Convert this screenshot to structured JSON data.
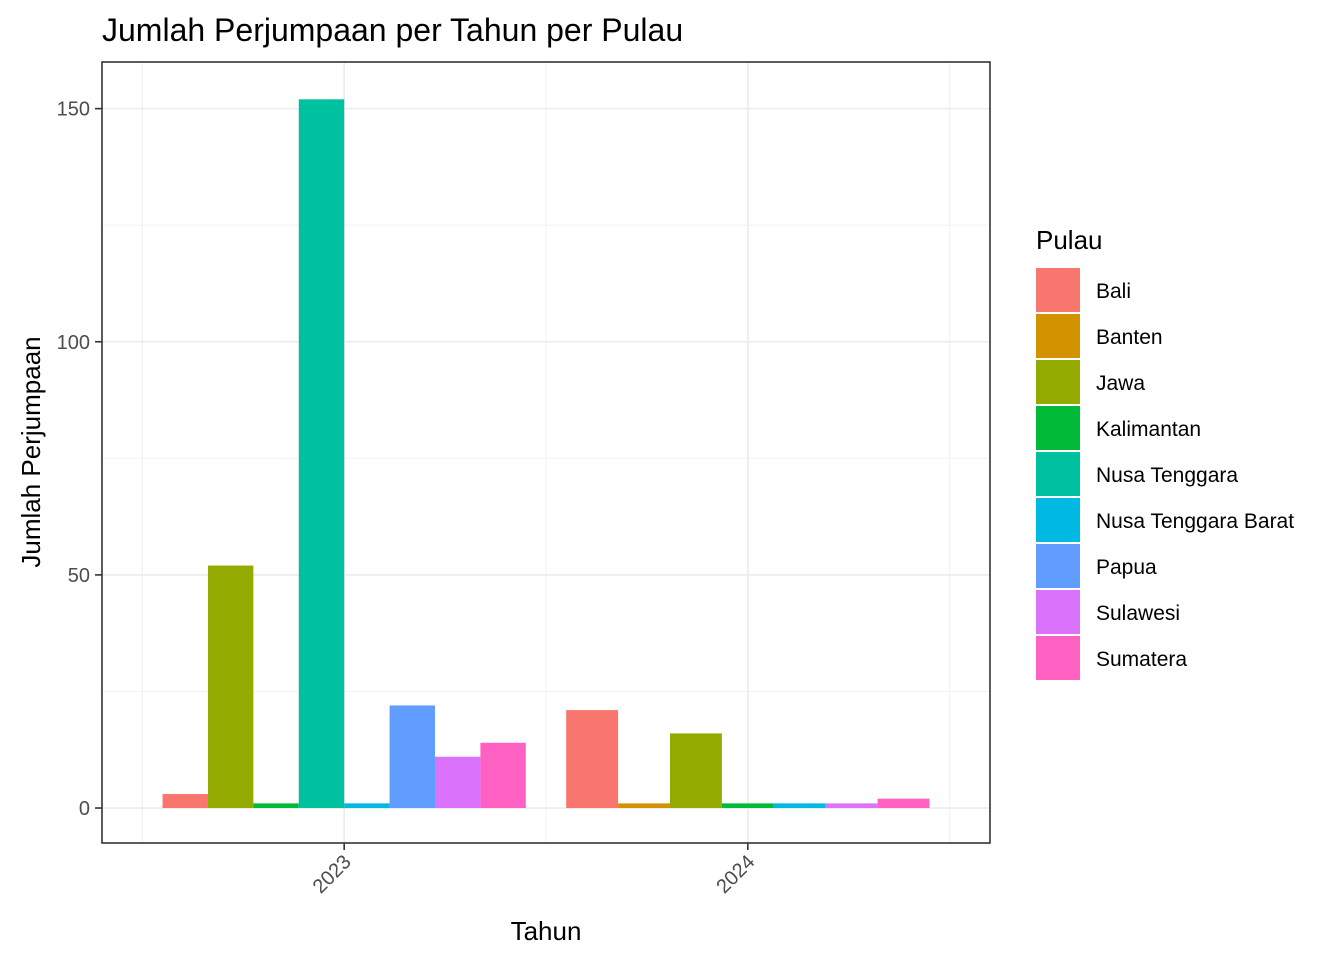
{
  "chart_data": {
    "type": "bar",
    "title": "Jumlah Perjumpaan per Tahun per Pulau",
    "xlabel": "Tahun",
    "ylabel": "Jumlah Perjumpaan",
    "ylim": [
      -7.5,
      160
    ],
    "yticks": [
      "0",
      "50",
      "100",
      "150"
    ],
    "ytick_values": [
      0,
      50,
      100,
      150
    ],
    "grid": true,
    "legend": {
      "title": "Pulau",
      "placement": "right"
    },
    "categories": [
      "2023",
      "2024"
    ],
    "series": [
      {
        "name": "Bali",
        "color": "#F8766D",
        "values": [
          3,
          21
        ]
      },
      {
        "name": "Banten",
        "color": "#D39200",
        "values": [
          null,
          1
        ]
      },
      {
        "name": "Jawa",
        "color": "#93AA00",
        "values": [
          52,
          16
        ]
      },
      {
        "name": "Kalimantan",
        "color": "#00BA38",
        "values": [
          1,
          1
        ]
      },
      {
        "name": "Nusa Tenggara",
        "color": "#00C19F",
        "values": [
          152,
          null
        ]
      },
      {
        "name": "Nusa Tenggara Barat",
        "color": "#00B9E3",
        "values": [
          1,
          1
        ]
      },
      {
        "name": "Papua",
        "color": "#619CFF",
        "values": [
          22,
          null
        ]
      },
      {
        "name": "Sulawesi",
        "color": "#DB72FB",
        "values": [
          11,
          1
        ]
      },
      {
        "name": "Sumatera",
        "color": "#FF61C3",
        "values": [
          14,
          2
        ]
      }
    ]
  }
}
